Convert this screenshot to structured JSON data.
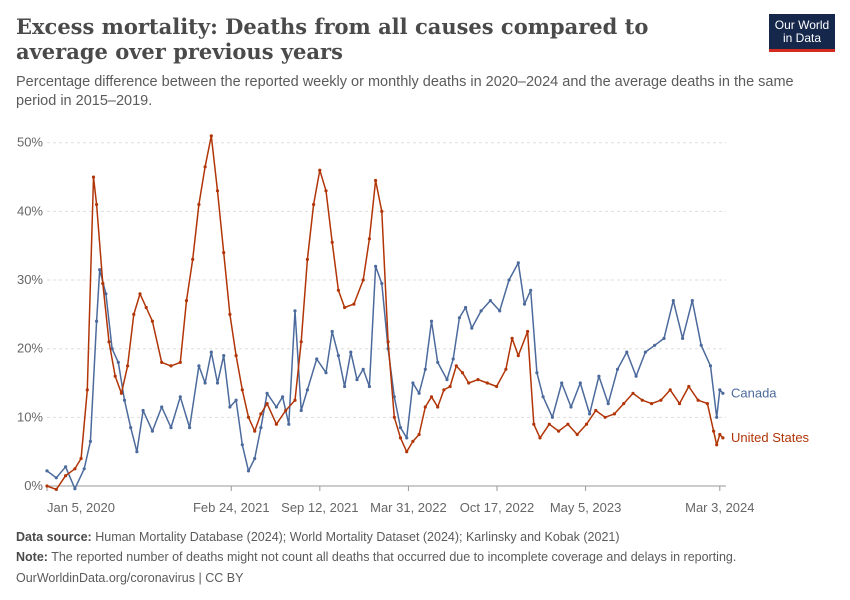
{
  "header": {
    "title": "Excess mortality: Deaths from all causes compared to average over previous years",
    "subtitle": "Percentage difference between the reported weekly or monthly deaths in 2020–2024 and the average deaths in the same period in 2015–2019.",
    "logo_line1": "Our World",
    "logo_line2": "in Data"
  },
  "footer": {
    "source_label": "Data source:",
    "source_text": "Human Mortality Database (2024); World Mortality Dataset (2024); Karlinsky and Kobak (2021)",
    "note_label": "Note:",
    "note_text": "The reported number of deaths might not count all deaths that occurred due to incomplete coverage and delays in reporting.",
    "credit": "OurWorldinData.org/coronavirus | CC BY"
  },
  "colors": {
    "canada": "#4c6a9c",
    "united_states": "#b13507",
    "grid": "#dddddd",
    "axis": "#999999"
  },
  "chart_data": {
    "type": "line",
    "x_axis_type": "date",
    "xlim": [
      "2020-01-05",
      "2024-03-17"
    ],
    "ylim": [
      0,
      52
    ],
    "y_ticks": [
      0,
      10,
      20,
      30,
      40,
      50
    ],
    "y_tick_labels": [
      "0%",
      "10%",
      "20%",
      "30%",
      "40%",
      "50%"
    ],
    "x_ticks": [
      "2020-01-05",
      "2021-02-24",
      "2021-09-12",
      "2022-03-31",
      "2022-10-17",
      "2023-05-05",
      "2024-03-03"
    ],
    "x_tick_labels": [
      "Jan 5, 2020",
      "Feb 24, 2021",
      "Sep 12, 2021",
      "Mar 31, 2022",
      "Oct 17, 2022",
      "May 5, 2023",
      "Mar 3, 2024"
    ],
    "grid": "horizontal dashed",
    "legend": "labels at line ends (right)",
    "series": [
      {
        "name": "Canada",
        "color": "#4c6a9c",
        "points": [
          [
            "2020-01-05",
            2.2
          ],
          [
            "2020-01-26",
            1.2
          ],
          [
            "2020-02-16",
            2.8
          ],
          [
            "2020-03-08",
            -0.4
          ],
          [
            "2020-03-29",
            2.5
          ],
          [
            "2020-04-12",
            6.5
          ],
          [
            "2020-04-26",
            24.0
          ],
          [
            "2020-05-03",
            31.5
          ],
          [
            "2020-05-17",
            28.0
          ],
          [
            "2020-05-31",
            20.0
          ],
          [
            "2020-06-14",
            18.0
          ],
          [
            "2020-06-28",
            12.5
          ],
          [
            "2020-07-12",
            8.5
          ],
          [
            "2020-07-26",
            5.0
          ],
          [
            "2020-08-09",
            11.0
          ],
          [
            "2020-08-30",
            8.0
          ],
          [
            "2020-09-20",
            11.5
          ],
          [
            "2020-10-11",
            8.5
          ],
          [
            "2020-11-01",
            13.0
          ],
          [
            "2020-11-22",
            8.5
          ],
          [
            "2020-12-13",
            17.5
          ],
          [
            "2020-12-27",
            15.0
          ],
          [
            "2021-01-10",
            19.5
          ],
          [
            "2021-01-24",
            15.0
          ],
          [
            "2021-02-07",
            19.0
          ],
          [
            "2021-02-21",
            11.5
          ],
          [
            "2021-03-07",
            12.5
          ],
          [
            "2021-03-21",
            6.0
          ],
          [
            "2021-04-04",
            2.2
          ],
          [
            "2021-04-18",
            4.0
          ],
          [
            "2021-05-02",
            8.5
          ],
          [
            "2021-05-16",
            13.5
          ],
          [
            "2021-06-06",
            11.5
          ],
          [
            "2021-06-20",
            13.0
          ],
          [
            "2021-07-04",
            9.0
          ],
          [
            "2021-07-18",
            25.5
          ],
          [
            "2021-08-01",
            11.0
          ],
          [
            "2021-08-15",
            14.0
          ],
          [
            "2021-09-05",
            18.5
          ],
          [
            "2021-09-26",
            16.5
          ],
          [
            "2021-10-10",
            22.5
          ],
          [
            "2021-10-24",
            19.0
          ],
          [
            "2021-11-07",
            14.5
          ],
          [
            "2021-11-21",
            19.5
          ],
          [
            "2021-12-05",
            15.5
          ],
          [
            "2021-12-19",
            17.0
          ],
          [
            "2022-01-02",
            14.5
          ],
          [
            "2022-01-16",
            32.0
          ],
          [
            "2022-01-30",
            29.5
          ],
          [
            "2022-02-13",
            20.0
          ],
          [
            "2022-02-27",
            13.0
          ],
          [
            "2022-03-13",
            8.5
          ],
          [
            "2022-03-27",
            7.0
          ],
          [
            "2022-04-10",
            15.0
          ],
          [
            "2022-04-24",
            13.5
          ],
          [
            "2022-05-08",
            17.0
          ],
          [
            "2022-05-22",
            24.0
          ],
          [
            "2022-06-05",
            18.0
          ],
          [
            "2022-06-26",
            15.5
          ],
          [
            "2022-07-10",
            18.5
          ],
          [
            "2022-07-24",
            24.5
          ],
          [
            "2022-08-07",
            26.0
          ],
          [
            "2022-08-21",
            23.0
          ],
          [
            "2022-09-11",
            25.5
          ],
          [
            "2022-10-02",
            27.0
          ],
          [
            "2022-10-23",
            25.5
          ],
          [
            "2022-11-13",
            30.0
          ],
          [
            "2022-12-04",
            32.5
          ],
          [
            "2022-12-18",
            26.5
          ],
          [
            "2023-01-01",
            28.5
          ],
          [
            "2023-01-15",
            16.5
          ],
          [
            "2023-01-29",
            13.0
          ],
          [
            "2023-02-19",
            10.0
          ],
          [
            "2023-03-12",
            15.0
          ],
          [
            "2023-04-02",
            11.5
          ],
          [
            "2023-04-23",
            15.0
          ],
          [
            "2023-05-14",
            10.5
          ],
          [
            "2023-06-04",
            16.0
          ],
          [
            "2023-06-25",
            12.0
          ],
          [
            "2023-07-16",
            17.0
          ],
          [
            "2023-08-06",
            19.5
          ],
          [
            "2023-08-27",
            16.0
          ],
          [
            "2023-09-17",
            19.5
          ],
          [
            "2023-10-08",
            20.5
          ],
          [
            "2023-10-29",
            21.5
          ],
          [
            "2023-11-19",
            27.0
          ],
          [
            "2023-12-10",
            21.5
          ],
          [
            "2024-01-01",
            27.0
          ],
          [
            "2024-01-21",
            20.5
          ],
          [
            "2024-02-11",
            17.5
          ],
          [
            "2024-02-25",
            10.0
          ],
          [
            "2024-03-03",
            14.0
          ],
          [
            "2024-03-10",
            13.5
          ]
        ]
      },
      {
        "name": "United States",
        "color": "#b13507",
        "points": [
          [
            "2020-01-05",
            0.0
          ],
          [
            "2020-01-26",
            -0.5
          ],
          [
            "2020-02-16",
            1.5
          ],
          [
            "2020-03-08",
            2.5
          ],
          [
            "2020-03-22",
            4.0
          ],
          [
            "2020-04-05",
            14.0
          ],
          [
            "2020-04-19",
            45.0
          ],
          [
            "2020-04-26",
            41.0
          ],
          [
            "2020-05-10",
            29.5
          ],
          [
            "2020-05-24",
            21.0
          ],
          [
            "2020-06-07",
            16.0
          ],
          [
            "2020-06-21",
            13.5
          ],
          [
            "2020-07-05",
            17.5
          ],
          [
            "2020-07-19",
            25.0
          ],
          [
            "2020-08-02",
            28.0
          ],
          [
            "2020-08-16",
            26.0
          ],
          [
            "2020-08-30",
            24.0
          ],
          [
            "2020-09-20",
            18.0
          ],
          [
            "2020-10-11",
            17.5
          ],
          [
            "2020-11-01",
            18.0
          ],
          [
            "2020-11-15",
            27.0
          ],
          [
            "2020-11-29",
            33.0
          ],
          [
            "2020-12-13",
            41.0
          ],
          [
            "2020-12-27",
            46.5
          ],
          [
            "2021-01-10",
            51.0
          ],
          [
            "2021-01-24",
            43.0
          ],
          [
            "2021-02-07",
            34.0
          ],
          [
            "2021-02-21",
            25.0
          ],
          [
            "2021-03-07",
            19.0
          ],
          [
            "2021-03-21",
            14.0
          ],
          [
            "2021-04-04",
            10.0
          ],
          [
            "2021-04-18",
            8.0
          ],
          [
            "2021-05-02",
            10.5
          ],
          [
            "2021-05-16",
            12.0
          ],
          [
            "2021-06-06",
            9.0
          ],
          [
            "2021-06-27",
            11.0
          ],
          [
            "2021-07-18",
            12.5
          ],
          [
            "2021-08-01",
            21.0
          ],
          [
            "2021-08-15",
            33.0
          ],
          [
            "2021-08-29",
            41.0
          ],
          [
            "2021-09-12",
            46.0
          ],
          [
            "2021-09-26",
            43.0
          ],
          [
            "2021-10-10",
            35.5
          ],
          [
            "2021-10-24",
            28.5
          ],
          [
            "2021-11-07",
            26.0
          ],
          [
            "2021-11-28",
            26.5
          ],
          [
            "2021-12-19",
            30.0
          ],
          [
            "2022-01-02",
            36.0
          ],
          [
            "2022-01-16",
            44.5
          ],
          [
            "2022-01-30",
            40.0
          ],
          [
            "2022-02-13",
            21.0
          ],
          [
            "2022-02-27",
            10.0
          ],
          [
            "2022-03-13",
            7.0
          ],
          [
            "2022-03-27",
            5.0
          ],
          [
            "2022-04-10",
            6.5
          ],
          [
            "2022-04-24",
            7.5
          ],
          [
            "2022-05-08",
            11.5
          ],
          [
            "2022-05-22",
            13.0
          ],
          [
            "2022-06-05",
            11.5
          ],
          [
            "2022-06-19",
            14.0
          ],
          [
            "2022-07-03",
            14.5
          ],
          [
            "2022-07-17",
            17.5
          ],
          [
            "2022-07-31",
            16.5
          ],
          [
            "2022-08-14",
            15.0
          ],
          [
            "2022-09-04",
            15.5
          ],
          [
            "2022-09-25",
            15.0
          ],
          [
            "2022-10-16",
            14.5
          ],
          [
            "2022-11-06",
            17.0
          ],
          [
            "2022-11-20",
            21.5
          ],
          [
            "2022-12-04",
            19.0
          ],
          [
            "2022-12-25",
            22.5
          ],
          [
            "2023-01-08",
            9.0
          ],
          [
            "2023-01-22",
            7.0
          ],
          [
            "2023-02-12",
            9.0
          ],
          [
            "2023-03-05",
            8.0
          ],
          [
            "2023-03-26",
            9.0
          ],
          [
            "2023-04-16",
            7.5
          ],
          [
            "2023-05-07",
            9.0
          ],
          [
            "2023-05-28",
            11.0
          ],
          [
            "2023-06-18",
            10.0
          ],
          [
            "2023-07-09",
            10.5
          ],
          [
            "2023-07-30",
            12.0
          ],
          [
            "2023-08-20",
            13.5
          ],
          [
            "2023-09-10",
            12.5
          ],
          [
            "2023-10-01",
            12.0
          ],
          [
            "2023-10-22",
            12.5
          ],
          [
            "2023-11-12",
            14.0
          ],
          [
            "2023-12-03",
            12.0
          ],
          [
            "2023-12-24",
            14.5
          ],
          [
            "2024-01-14",
            12.5
          ],
          [
            "2024-02-04",
            12.0
          ],
          [
            "2024-02-18",
            8.0
          ],
          [
            "2024-02-25",
            6.0
          ],
          [
            "2024-03-03",
            7.5
          ],
          [
            "2024-03-10",
            7.0
          ]
        ]
      }
    ]
  }
}
